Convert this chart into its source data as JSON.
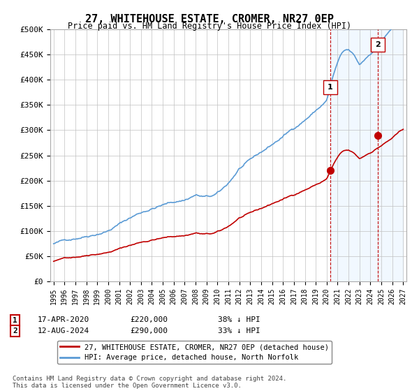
{
  "title": "27, WHITEHOUSE ESTATE, CROMER, NR27 0EP",
  "subtitle": "Price paid vs. HM Land Registry's House Price Index (HPI)",
  "ylim": [
    0,
    500000
  ],
  "yticks": [
    0,
    50000,
    100000,
    150000,
    200000,
    250000,
    300000,
    350000,
    400000,
    450000,
    500000
  ],
  "ytick_labels": [
    "£0",
    "£50K",
    "£100K",
    "£150K",
    "£200K",
    "£250K",
    "£300K",
    "£350K",
    "£400K",
    "£450K",
    "£500K"
  ],
  "hpi_color": "#5b9bd5",
  "price_color": "#c00000",
  "marker1_price": 220000,
  "marker2_price": 290000,
  "legend_line1": "27, WHITEHOUSE ESTATE, CROMER, NR27 0EP (detached house)",
  "legend_line2": "HPI: Average price, detached house, North Norfolk",
  "table_row1_num": "1",
  "table_row1_date": "17-APR-2020",
  "table_row1_price": "£220,000",
  "table_row1_hpi": "38% ↓ HPI",
  "table_row2_num": "2",
  "table_row2_date": "12-AUG-2024",
  "table_row2_price": "£290,000",
  "table_row2_hpi": "33% ↓ HPI",
  "footnote": "Contains HM Land Registry data © Crown copyright and database right 2024.\nThis data is licensed under the Open Government Licence v3.0.",
  "bg_color": "#ffffff",
  "grid_color": "#c0c0c0",
  "start_year": 1995,
  "end_year": 2027,
  "marker1_year": 2020.29,
  "marker2_year": 2024.62
}
